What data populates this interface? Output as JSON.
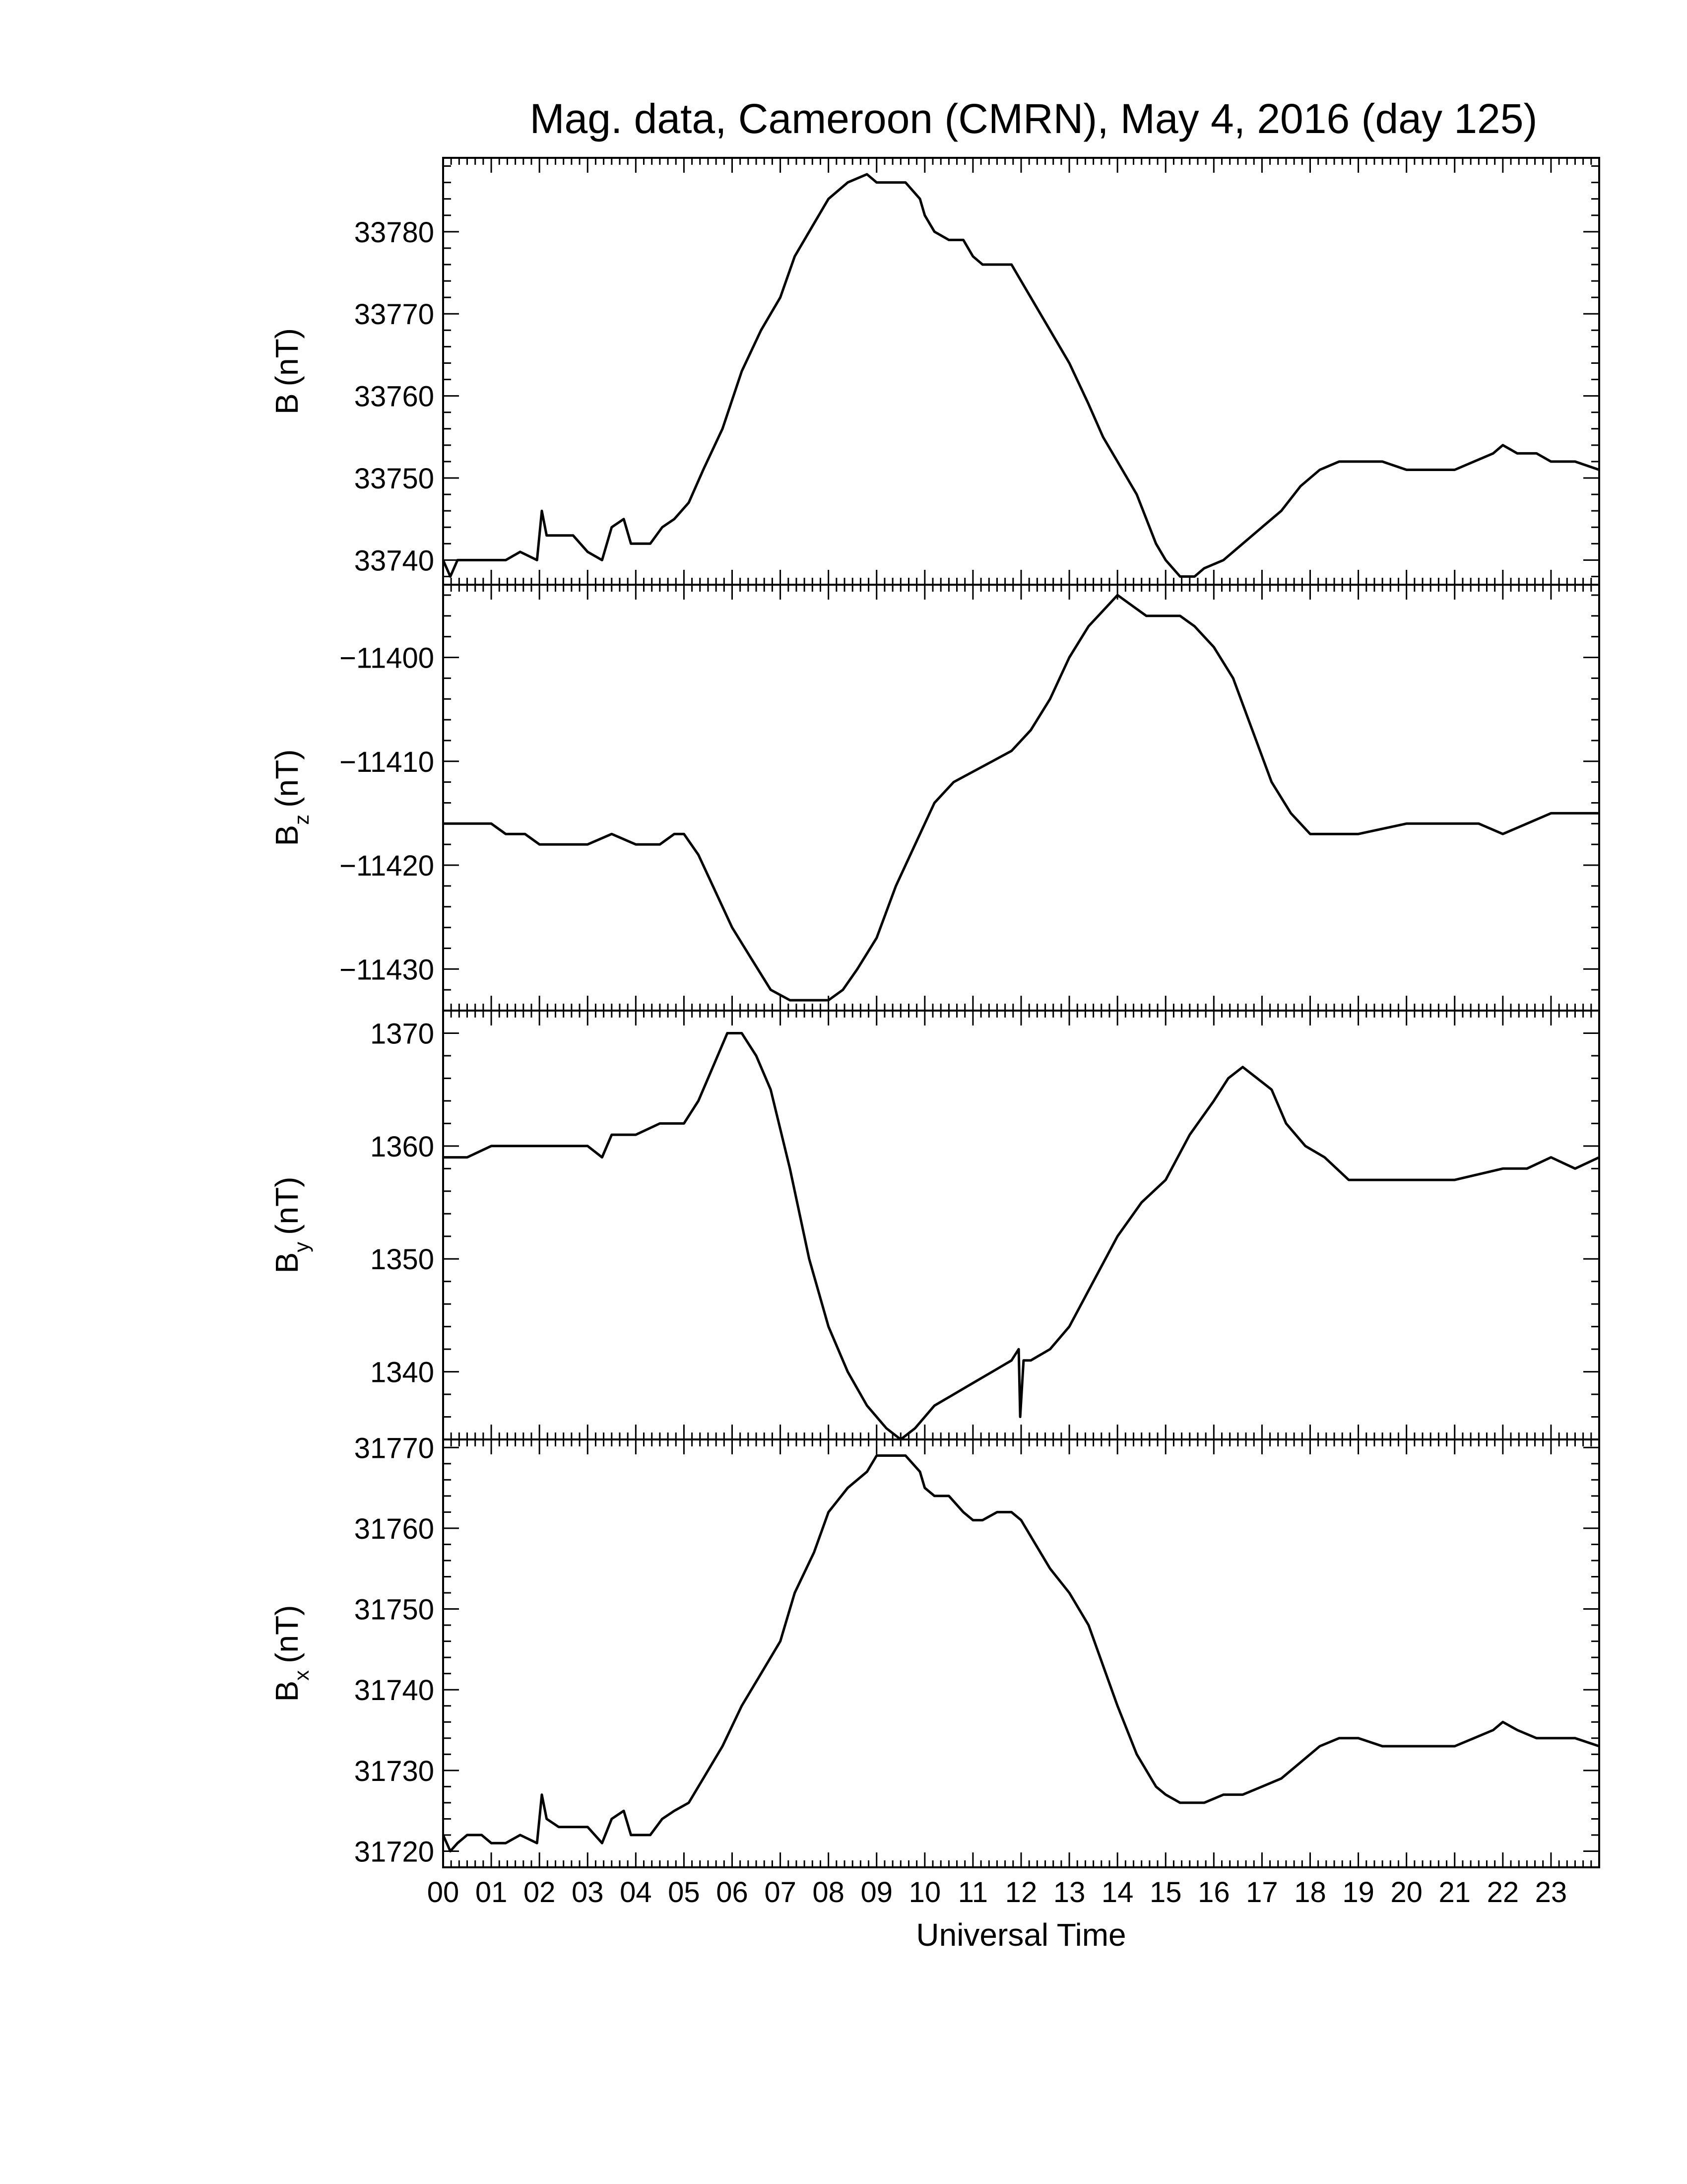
{
  "chart_data": {
    "title": "Mag. data, Cameroon (CMRN), May 4, 2016 (day 125)",
    "xlabel": "Universal Time",
    "x_ticks": [
      "00",
      "01",
      "02",
      "03",
      "04",
      "05",
      "06",
      "07",
      "08",
      "09",
      "10",
      "11",
      "12",
      "13",
      "14",
      "15",
      "16",
      "17",
      "18",
      "19",
      "20",
      "21",
      "22",
      "23"
    ],
    "xlim": [
      0,
      24
    ],
    "line_color": "#000000",
    "panels": [
      {
        "id": "B",
        "type": "line",
        "ylabel_main": "B",
        "ylabel_sub": "",
        "ylabel_unit": "(nT)",
        "ylim": [
          33737,
          33789
        ],
        "y_ticks": [
          33740,
          33750,
          33760,
          33770,
          33780
        ],
        "series": [
          {
            "x": [
              0,
              0.15,
              0.3,
              0.5,
              0.8,
              1.0,
              1.3,
              1.6,
              1.95,
              2.05,
              2.15,
              2.4,
              2.7,
              3.0,
              3.3,
              3.5,
              3.75,
              3.9,
              4.05,
              4.3,
              4.55,
              4.8,
              5.1,
              5.4,
              5.8,
              6.2,
              6.6,
              7.0,
              7.3,
              7.7,
              8.0,
              8.4,
              8.8,
              9.0,
              9.3,
              9.6,
              9.9,
              10.0,
              10.2,
              10.5,
              10.8,
              11.0,
              11.2,
              11.5,
              11.8,
              12.0,
              12.3,
              12.6,
              13.0,
              13.4,
              13.7,
              14.0,
              14.4,
              14.8,
              15.0,
              15.3,
              15.6,
              15.8,
              16.2,
              16.6,
              17.0,
              17.4,
              17.8,
              18.2,
              18.6,
              19.0,
              19.5,
              20.0,
              20.5,
              21.0,
              21.4,
              21.8,
              22.0,
              22.3,
              22.7,
              23.0,
              23.5,
              24.0
            ],
            "y": [
              33740,
              33738,
              33740,
              33740,
              33740,
              33740,
              33740,
              33741,
              33740,
              33746,
              33743,
              33743,
              33743,
              33741,
              33740,
              33744,
              33745,
              33742,
              33742,
              33742,
              33744,
              33745,
              33747,
              33751,
              33756,
              33763,
              33768,
              33772,
              33777,
              33781,
              33784,
              33786,
              33787,
              33786,
              33786,
              33786,
              33784,
              33782,
              33780,
              33779,
              33779,
              33777,
              33776,
              33776,
              33776,
              33774,
              33771,
              33768,
              33764,
              33759,
              33755,
              33752,
              33748,
              33742,
              33740,
              33738,
              33738,
              33739,
              33740,
              33742,
              33744,
              33746,
              33749,
              33751,
              33752,
              33752,
              33752,
              33751,
              33751,
              33751,
              33752,
              33753,
              33754,
              33753,
              33753,
              33752,
              33752,
              33751
            ]
          }
        ]
      },
      {
        "id": "Bz",
        "type": "line",
        "ylabel_main": "B",
        "ylabel_sub": "z",
        "ylabel_unit": "(nT)",
        "ylim": [
          -11434,
          -11393
        ],
        "y_ticks": [
          -11400,
          -11410,
          -11420,
          -11430
        ],
        "series": [
          {
            "x": [
              0,
              0.5,
              1.0,
              1.3,
              1.7,
              2.0,
              2.5,
              3.0,
              3.5,
              4.0,
              4.5,
              4.8,
              5.0,
              5.3,
              5.6,
              6.0,
              6.4,
              6.8,
              7.2,
              7.6,
              8.0,
              8.3,
              8.6,
              9.0,
              9.4,
              9.8,
              10.2,
              10.6,
              11.0,
              11.4,
              11.8,
              12.2,
              12.6,
              13.0,
              13.4,
              13.8,
              14.0,
              14.3,
              14.6,
              15.0,
              15.3,
              15.6,
              16.0,
              16.4,
              16.8,
              17.2,
              17.6,
              18.0,
              18.5,
              19.0,
              20.0,
              21.0,
              21.5,
              22.0,
              22.5,
              23.0,
              24.0
            ],
            "y": [
              -11416,
              -11416,
              -11416,
              -11417,
              -11417,
              -11418,
              -11418,
              -11418,
              -11417,
              -11418,
              -11418,
              -11417,
              -11417,
              -11419,
              -11422,
              -11426,
              -11429,
              -11432,
              -11433,
              -11433,
              -11433,
              -11432,
              -11430,
              -11427,
              -11422,
              -11418,
              -11414,
              -11412,
              -11411,
              -11410,
              -11409,
              -11407,
              -11404,
              -11400,
              -11397,
              -11395,
              -11394,
              -11395,
              -11396,
              -11396,
              -11396,
              -11397,
              -11399,
              -11402,
              -11407,
              -11412,
              -11415,
              -11417,
              -11417,
              -11417,
              -11416,
              -11416,
              -11416,
              -11417,
              -11416,
              -11415,
              -11415
            ]
          }
        ]
      },
      {
        "id": "By",
        "type": "line",
        "ylabel_main": "B",
        "ylabel_sub": "y",
        "ylabel_unit": "(nT)",
        "ylim": [
          1334,
          1372
        ],
        "y_ticks": [
          1340,
          1350,
          1360,
          1370
        ],
        "series": [
          {
            "x": [
              0,
              0.5,
              1.0,
              1.5,
              2.0,
              2.5,
              3.0,
              3.3,
              3.5,
              4.0,
              4.5,
              5.0,
              5.3,
              5.6,
              5.9,
              6.2,
              6.5,
              6.8,
              7.2,
              7.6,
              8.0,
              8.4,
              8.8,
              9.2,
              9.5,
              9.8,
              10.2,
              10.6,
              11.0,
              11.4,
              11.8,
              11.95,
              11.98,
              12.05,
              12.2,
              12.6,
              13.0,
              13.5,
              14.0,
              14.5,
              15.0,
              15.5,
              16.0,
              16.3,
              16.6,
              16.9,
              17.2,
              17.5,
              17.9,
              18.3,
              18.8,
              19.5,
              20.0,
              21.0,
              22.0,
              22.5,
              23.0,
              23.5,
              24.0
            ],
            "y": [
              1359,
              1359,
              1360,
              1360,
              1360,
              1360,
              1360,
              1359,
              1361,
              1361,
              1362,
              1362,
              1364,
              1367,
              1370,
              1370,
              1368,
              1365,
              1358,
              1350,
              1344,
              1340,
              1337,
              1335,
              1334,
              1335,
              1337,
              1338,
              1339,
              1340,
              1341,
              1342,
              1336,
              1341,
              1341,
              1342,
              1344,
              1348,
              1352,
              1355,
              1357,
              1361,
              1364,
              1366,
              1367,
              1366,
              1365,
              1362,
              1360,
              1359,
              1357,
              1357,
              1357,
              1357,
              1358,
              1358,
              1359,
              1358,
              1359
            ]
          }
        ]
      },
      {
        "id": "Bx",
        "type": "line",
        "ylabel_main": "B",
        "ylabel_sub": "x",
        "ylabel_unit": "(nT)",
        "ylim": [
          31718,
          31771
        ],
        "y_ticks": [
          31720,
          31730,
          31740,
          31750,
          31760,
          31770
        ],
        "series": [
          {
            "x": [
              0,
              0.15,
              0.3,
              0.5,
              0.8,
              1.0,
              1.3,
              1.6,
              1.95,
              2.05,
              2.15,
              2.4,
              2.7,
              3.0,
              3.3,
              3.5,
              3.75,
              3.9,
              4.05,
              4.3,
              4.55,
              4.8,
              5.1,
              5.4,
              5.8,
              6.2,
              6.6,
              7.0,
              7.3,
              7.7,
              8.0,
              8.4,
              8.8,
              9.0,
              9.3,
              9.6,
              9.9,
              10.0,
              10.2,
              10.5,
              10.8,
              11.0,
              11.2,
              11.5,
              11.8,
              12.0,
              12.3,
              12.6,
              13.0,
              13.4,
              13.7,
              14.0,
              14.4,
              14.8,
              15.0,
              15.3,
              15.6,
              15.8,
              16.2,
              16.6,
              17.0,
              17.4,
              17.8,
              18.2,
              18.6,
              19.0,
              19.5,
              20.0,
              20.5,
              21.0,
              21.4,
              21.8,
              22.0,
              22.3,
              22.7,
              23.0,
              23.5,
              24.0
            ],
            "y": [
              31722,
              31720,
              31721,
              31722,
              31722,
              31721,
              31721,
              31722,
              31721,
              31727,
              31724,
              31723,
              31723,
              31723,
              31721,
              31724,
              31725,
              31722,
              31722,
              31722,
              31724,
              31725,
              31726,
              31729,
              31733,
              31738,
              31742,
              31746,
              31752,
              31757,
              31762,
              31765,
              31767,
              31769,
              31769,
              31769,
              31767,
              31765,
              31764,
              31764,
              31762,
              31761,
              31761,
              31762,
              31762,
              31761,
              31758,
              31755,
              31752,
              31748,
              31743,
              31738,
              31732,
              31728,
              31727,
              31726,
              31726,
              31726,
              31727,
              31727,
              31728,
              31729,
              31731,
              31733,
              31734,
              31734,
              31733,
              31733,
              31733,
              31733,
              31734,
              31735,
              31736,
              31735,
              31734,
              31734,
              31734,
              31733
            ]
          }
        ]
      }
    ]
  }
}
